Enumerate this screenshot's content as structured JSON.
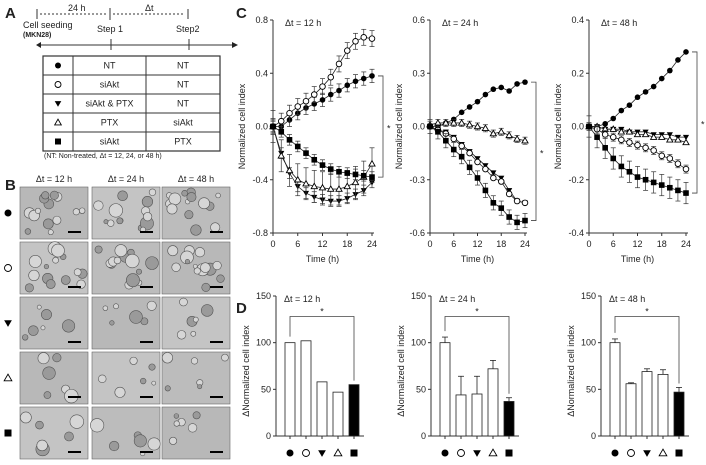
{
  "panel_labels": {
    "a": "A",
    "b": "B",
    "c": "C",
    "d": "D"
  },
  "panelA": {
    "interval1": "24 h",
    "interval2": "Δt",
    "seeding": "Cell seeding",
    "cell_line": "(MKN28)",
    "step1": "Step 1",
    "step2": "Step2",
    "rows": [
      {
        "symbol": "filled-circle",
        "step1": "NT",
        "step2": "NT"
      },
      {
        "symbol": "open-circle",
        "step1": "siAkt",
        "step2": "NT"
      },
      {
        "symbol": "filled-triangle-down",
        "step1": "siAkt  & PTX",
        "step2": "NT"
      },
      {
        "symbol": "open-triangle-up",
        "step1": "PTX",
        "step2": "siAkt"
      },
      {
        "symbol": "filled-square",
        "step1": "siAkt",
        "step2": "PTX"
      }
    ],
    "footnote": "(NT: Non-treated,  Δt = 12, 24, or 48 h)"
  },
  "panelB": {
    "columns": [
      "Δt = 12 h",
      "Δt = 24 h",
      "Δt = 48 h"
    ],
    "row_symbols": [
      "filled-circle",
      "open-circle",
      "filled-triangle-down",
      "open-triangle-up",
      "filled-square"
    ]
  },
  "chart_data": [
    {
      "type": "line",
      "panel": "C",
      "title": "Δt = 12 h",
      "xlabel": "Time (h)",
      "ylabel": "Normalized cell index",
      "xlim": [
        0,
        24
      ],
      "ylim": [
        -0.8,
        0.8
      ],
      "xticks": [
        0,
        6,
        12,
        18,
        24
      ],
      "yticks": [
        "-0.8",
        "-0.4",
        "0.0",
        "0.4",
        "0.8"
      ],
      "x": [
        0,
        2,
        4,
        6,
        8,
        10,
        12,
        14,
        16,
        18,
        20,
        22,
        24
      ],
      "series": [
        {
          "symbol": "filled-circle",
          "err": 0.05,
          "values": [
            0,
            0,
            0.05,
            0.1,
            0.14,
            0.17,
            0.2,
            0.24,
            0.27,
            0.31,
            0.34,
            0.36,
            0.38
          ]
        },
        {
          "symbol": "open-circle",
          "err": 0.06,
          "values": [
            0,
            0.04,
            0.1,
            0.15,
            0.19,
            0.24,
            0.3,
            0.37,
            0.47,
            0.57,
            0.64,
            0.67,
            0.66
          ]
        },
        {
          "symbol": "filled-triangle-down",
          "err": 0.04,
          "values": [
            0,
            -0.2,
            -0.35,
            -0.45,
            -0.5,
            -0.53,
            -0.55,
            -0.56,
            -0.56,
            -0.54,
            -0.51,
            -0.48,
            -0.42
          ]
        },
        {
          "symbol": "open-triangle-up",
          "err": 0.12,
          "values": [
            0,
            -0.22,
            -0.33,
            -0.4,
            -0.43,
            -0.45,
            -0.46,
            -0.47,
            -0.47,
            -0.45,
            -0.42,
            -0.38,
            -0.28
          ]
        },
        {
          "symbol": "filled-square",
          "err": 0.04,
          "values": [
            0,
            -0.04,
            -0.1,
            -0.15,
            -0.2,
            -0.25,
            -0.29,
            -0.32,
            -0.34,
            -0.35,
            -0.36,
            -0.37,
            -0.38
          ]
        }
      ],
      "significance": "*"
    },
    {
      "type": "line",
      "panel": "C",
      "title": "Δt = 24 h",
      "xlabel": "Time (h)",
      "ylabel": "Normalized cell index",
      "xlim": [
        0,
        24
      ],
      "ylim": [
        -0.6,
        0.6
      ],
      "xticks": [
        0,
        6,
        12,
        18,
        24
      ],
      "yticks": [
        "-0.6",
        "-0.3",
        "0.0",
        "0.3",
        "0.6"
      ],
      "x": [
        0,
        2,
        4,
        6,
        8,
        10,
        12,
        14,
        16,
        18,
        20,
        22,
        24
      ],
      "series": [
        {
          "symbol": "filled-circle",
          "err": 0.005,
          "values": [
            0,
            0,
            0.02,
            0.04,
            0.08,
            0.11,
            0.14,
            0.18,
            0.21,
            0.22,
            0.2,
            0.24,
            0.25
          ]
        },
        {
          "symbol": "open-triangle-up",
          "err": 0.02,
          "values": [
            0.01,
            0.02,
            0.02,
            0.02,
            0.02,
            0.01,
            0,
            -0.01,
            -0.04,
            -0.03,
            -0.05,
            -0.07,
            -0.08
          ]
        },
        {
          "symbol": "filled-triangle-down",
          "err": 0.01,
          "values": [
            0,
            -0.02,
            -0.03,
            -0.06,
            -0.1,
            -0.14,
            -0.18,
            -0.22,
            -0.26,
            -0.29,
            -0.36,
            -0.42,
            -0.43
          ]
        },
        {
          "symbol": "open-circle",
          "err": 0.01,
          "values": [
            0,
            -0.02,
            -0.04,
            -0.07,
            -0.11,
            -0.15,
            -0.2,
            -0.24,
            -0.29,
            -0.31,
            -0.38,
            -0.42,
            -0.43
          ]
        },
        {
          "symbol": "filled-square",
          "err": 0.04,
          "values": [
            0,
            -0.03,
            -0.08,
            -0.13,
            -0.17,
            -0.23,
            -0.29,
            -0.36,
            -0.43,
            -0.46,
            -0.51,
            -0.54,
            -0.53
          ]
        }
      ],
      "significance": "*"
    },
    {
      "type": "line",
      "panel": "C",
      "title": "Δt = 48 h",
      "xlabel": "Time (h)",
      "ylabel": "Normalized cell index",
      "xlim": [
        0,
        24
      ],
      "ylim": [
        -0.4,
        0.4
      ],
      "xticks": [
        0,
        6,
        12,
        18,
        24
      ],
      "yticks": [
        "-0.4",
        "-0.2",
        "0.0",
        "0.2",
        "0.4"
      ],
      "x": [
        0,
        2,
        4,
        6,
        8,
        10,
        12,
        14,
        16,
        18,
        20,
        22,
        24
      ],
      "series": [
        {
          "symbol": "filled-circle",
          "err": 0.005,
          "values": [
            0,
            0,
            0.01,
            0.03,
            0.06,
            0.08,
            0.11,
            0.13,
            0.15,
            0.18,
            0.21,
            0.25,
            0.28
          ]
        },
        {
          "symbol": "filled-triangle-down",
          "err": 0.005,
          "values": [
            0,
            0,
            -0.01,
            -0.01,
            -0.01,
            -0.02,
            -0.02,
            -0.02,
            -0.03,
            -0.03,
            -0.03,
            -0.04,
            -0.04
          ]
        },
        {
          "symbol": "open-triangle-up",
          "err": 0.005,
          "values": [
            0,
            0,
            -0.01,
            -0.01,
            -0.02,
            -0.02,
            -0.03,
            -0.03,
            -0.04,
            -0.04,
            -0.05,
            -0.05,
            -0.06
          ]
        },
        {
          "symbol": "open-circle",
          "err": 0.015,
          "values": [
            0,
            -0.01,
            -0.03,
            -0.04,
            -0.05,
            -0.06,
            -0.07,
            -0.08,
            -0.09,
            -0.11,
            -0.12,
            -0.14,
            -0.16
          ]
        },
        {
          "symbol": "filled-square",
          "err": 0.04,
          "values": [
            0,
            -0.04,
            -0.08,
            -0.12,
            -0.15,
            -0.17,
            -0.19,
            -0.2,
            -0.21,
            -0.22,
            -0.23,
            -0.24,
            -0.25
          ]
        }
      ],
      "significance": "*"
    },
    {
      "type": "bar",
      "panel": "D",
      "title": "Δt = 12 h",
      "ylabel": "ΔNormalized cell index",
      "ylim": [
        0,
        150
      ],
      "yticks": [
        "0",
        "50",
        "100",
        "150"
      ],
      "categories": [
        "filled-circle",
        "open-circle",
        "filled-triangle-down",
        "open-triangle-up",
        "filled-square"
      ],
      "values": [
        100,
        102,
        58,
        47,
        55
      ],
      "errors": [
        0,
        0,
        0,
        0,
        0
      ],
      "fills": [
        "#ffffff",
        "#ffffff",
        "#ffffff",
        "#ffffff",
        "#000000"
      ],
      "significance": "*"
    },
    {
      "type": "bar",
      "panel": "D",
      "title": "Δt = 24 h",
      "ylabel": "ΔNormalized cell index",
      "ylim": [
        0,
        150
      ],
      "yticks": [
        "0",
        "50",
        "100",
        "150"
      ],
      "categories": [
        "filled-circle",
        "open-circle",
        "filled-triangle-down",
        "open-triangle-up",
        "filled-square"
      ],
      "values": [
        100,
        44,
        45,
        72,
        37
      ],
      "errors": [
        6,
        20,
        19,
        9,
        4
      ],
      "fills": [
        "#ffffff",
        "#ffffff",
        "#ffffff",
        "#ffffff",
        "#000000"
      ],
      "significance": "*"
    },
    {
      "type": "bar",
      "panel": "D",
      "title": "Δt = 48 h",
      "ylabel": "ΔNormalized cell index",
      "ylim": [
        0,
        150
      ],
      "yticks": [
        "0",
        "50",
        "100",
        "150"
      ],
      "categories": [
        "filled-circle",
        "open-circle",
        "filled-triangle-down",
        "open-triangle-up",
        "filled-square"
      ],
      "values": [
        100,
        56,
        69,
        66,
        47
      ],
      "errors": [
        4,
        1,
        3,
        5,
        5
      ],
      "fills": [
        "#ffffff",
        "#ffffff",
        "#ffffff",
        "#ffffff",
        "#000000"
      ],
      "significance": "*"
    }
  ]
}
